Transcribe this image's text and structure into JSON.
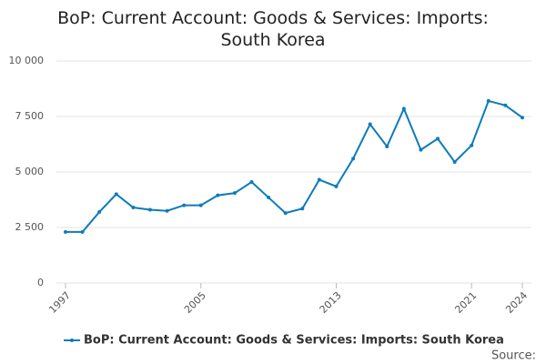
{
  "chart_data": {
    "type": "line",
    "title": "BoP: Current Account: Goods & Services: Imports: South Korea",
    "x": [
      1997,
      1998,
      1999,
      2000,
      2001,
      2002,
      2003,
      2004,
      2005,
      2006,
      2007,
      2008,
      2009,
      2010,
      2011,
      2012,
      2013,
      2014,
      2015,
      2016,
      2017,
      2018,
      2019,
      2020,
      2021,
      2022,
      2023,
      2024
    ],
    "series": [
      {
        "name": "BoP: Current Account: Goods & Services: Imports: South Korea",
        "color": "#0e7bba",
        "values": [
          2300,
          2300,
          3200,
          4000,
          3400,
          3300,
          3250,
          3500,
          3500,
          3950,
          4050,
          4550,
          3850,
          3150,
          3350,
          4650,
          4350,
          5600,
          7150,
          6150,
          7850,
          6000,
          6500,
          5450,
          6200,
          8200,
          8000,
          7450
        ]
      }
    ],
    "xlim": [
      1997,
      2024
    ],
    "xticks": [
      1997,
      2005,
      2013,
      2021,
      2024
    ],
    "ylim": [
      0,
      10000
    ],
    "yticks": [
      0,
      {
        "value": 2500,
        "label": "2 500"
      },
      {
        "value": 5000,
        "label": "5 000"
      },
      {
        "value": 7500,
        "label": "7 500"
      },
      {
        "value": 10000,
        "label": "10 000"
      }
    ],
    "grid": true,
    "source_label": "Source:"
  }
}
